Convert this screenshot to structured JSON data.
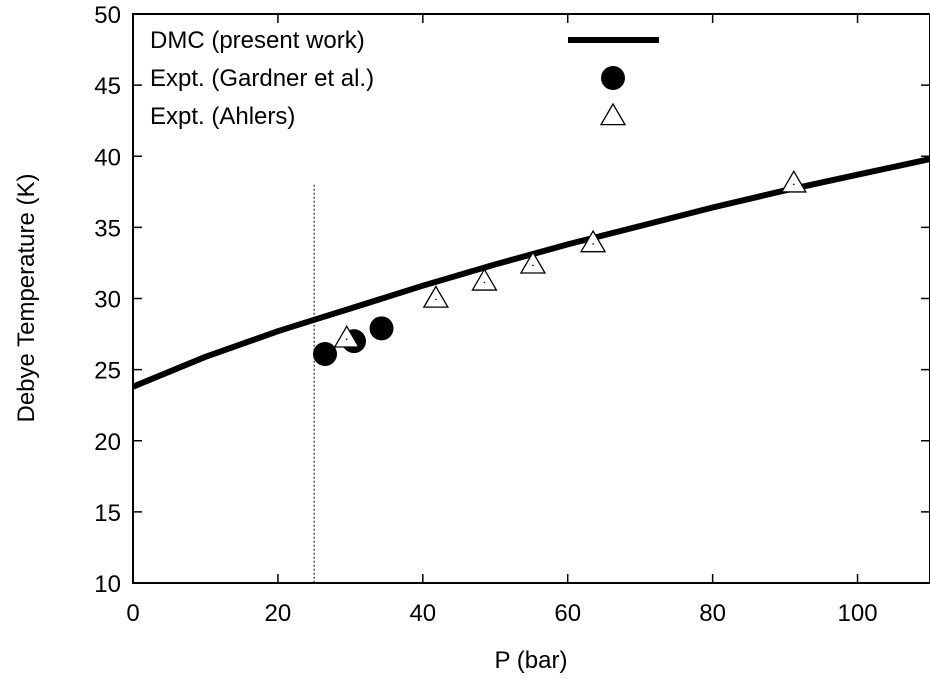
{
  "chart_data": {
    "type": "scatter",
    "xlabel": "P (bar)",
    "ylabel": "Debye Temperature (K)",
    "xlim": [
      0,
      110
    ],
    "ylim": [
      10,
      50
    ],
    "x_ticks": [
      0,
      20,
      40,
      60,
      80,
      100
    ],
    "y_ticks": [
      10,
      15,
      20,
      25,
      30,
      35,
      40,
      45,
      50
    ],
    "grid": false,
    "legend_position": "top-left",
    "reference_line": {
      "x": 25,
      "y_range": [
        10,
        38
      ]
    },
    "series": [
      {
        "name": "DMC (present work)",
        "kind": "line",
        "color": "#000000",
        "x": [
          0,
          10,
          20,
          25,
          30,
          40,
          50,
          60,
          70,
          80,
          90,
          100,
          110
        ],
        "y": [
          23.8,
          25.9,
          27.7,
          28.5,
          29.3,
          30.9,
          32.4,
          33.8,
          35.1,
          36.4,
          37.6,
          38.7,
          39.8
        ]
      },
      {
        "name": "Expt. (Gardner et al.)",
        "kind": "points",
        "marker": "filled-circle",
        "color": "#000000",
        "x": [
          26.5,
          30.5,
          34.3
        ],
        "y": [
          26.1,
          27.0,
          27.9
        ]
      },
      {
        "name": "Expt. (Ahlers)",
        "kind": "points",
        "marker": "open-triangle",
        "color": "#000000",
        "x": [
          29.5,
          41.8,
          48.5,
          55.2,
          63.5,
          91.2
        ],
        "y": [
          27.2,
          30.0,
          31.2,
          32.4,
          33.9,
          38.1
        ]
      }
    ]
  }
}
